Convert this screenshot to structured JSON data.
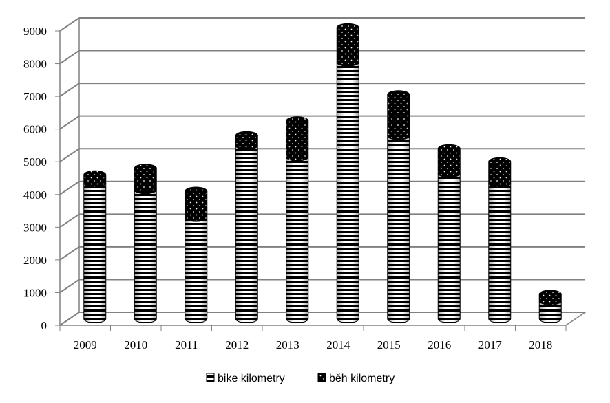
{
  "chart_data": {
    "type": "bar",
    "stacked": true,
    "style": "3d-cylinder",
    "categories": [
      "2009",
      "2010",
      "2011",
      "2012",
      "2013",
      "2014",
      "2015",
      "2016",
      "2017",
      "2018"
    ],
    "series": [
      {
        "name": "bike kilometry",
        "pattern": "horizontal-stripes",
        "values": [
          4150,
          3950,
          3100,
          5300,
          4950,
          7850,
          5600,
          4450,
          4150,
          550
        ]
      },
      {
        "name": "běh kilometry",
        "pattern": "dotted-black",
        "values": [
          250,
          650,
          800,
          300,
          1100,
          1050,
          1250,
          750,
          650,
          200
        ]
      }
    ],
    "ylim": [
      0,
      9000
    ],
    "yticks": [
      "0",
      "1000",
      "2000",
      "3000",
      "4000",
      "5000",
      "6000",
      "7000",
      "8000",
      "9000"
    ],
    "grid": true,
    "legend_position": "bottom",
    "colors": {
      "stroke": "#000000",
      "grid": "#808080",
      "fill": "#ffffff"
    }
  }
}
